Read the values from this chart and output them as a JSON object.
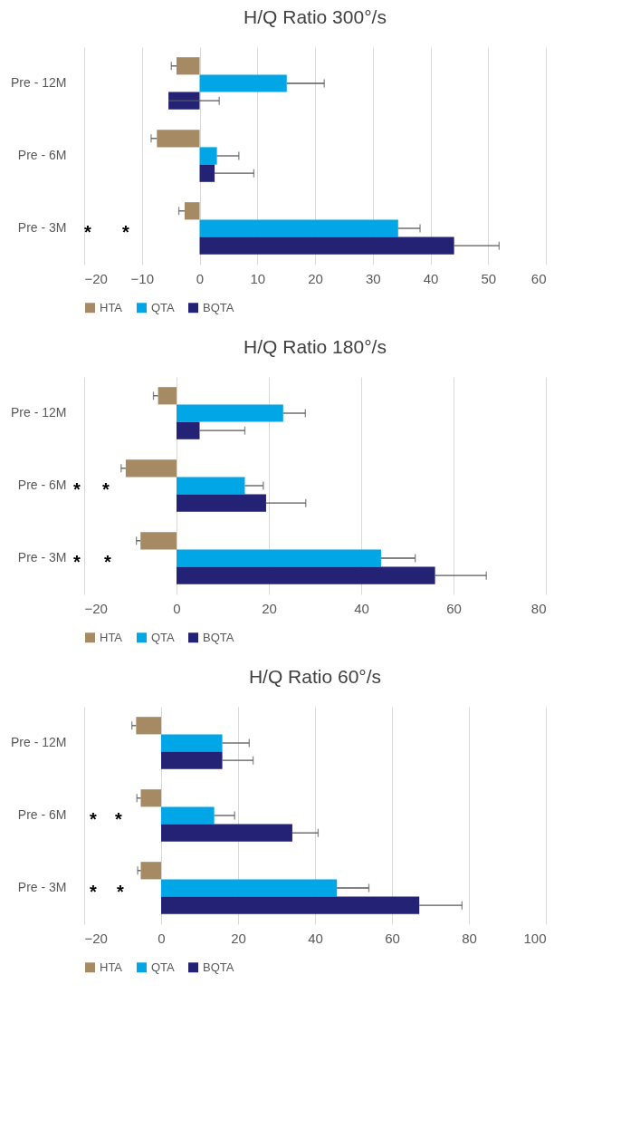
{
  "chart_data": [
    {
      "type": "bar",
      "orientation": "horizontal",
      "title": "H/Q Ratio  300°/s",
      "categories": [
        "Pre - 12M",
        "Pre - 6M",
        "Pre - 3M"
      ],
      "series": [
        {
          "name": "HTA",
          "color": "#a68a64",
          "values": [
            -4.0,
            -7.4,
            -2.6
          ],
          "errors": [
            [
              -4.9,
              -4.0
            ],
            [
              -8.4,
              -7.4
            ],
            [
              -3.6,
              -2.6
            ]
          ]
        },
        {
          "name": "QTA",
          "color": "#00a6e6",
          "values": [
            15.1,
            3.0,
            34.4
          ],
          "errors": [
            [
              15.1,
              21.6
            ],
            [
              3.0,
              6.8
            ],
            [
              34.4,
              38.2
            ]
          ]
        },
        {
          "name": "BQTA",
          "color": "#232274",
          "values": [
            -5.4,
            2.6,
            44.1
          ],
          "errors": [
            [
              -5.4,
              3.4
            ],
            [
              2.6,
              9.4
            ],
            [
              44.1,
              51.9
            ]
          ]
        }
      ],
      "xlim": [
        -20,
        60
      ],
      "xticks": [
        -20,
        -10,
        0,
        10,
        20,
        30,
        40,
        50,
        60
      ],
      "grid": "x",
      "legend": "bottom",
      "annotations": [
        "*",
        "*"
      ]
    },
    {
      "type": "bar",
      "orientation": "horizontal",
      "title": "H/Q Ratio  180°/s",
      "categories": [
        "Pre - 12M",
        "Pre - 6M",
        "Pre - 3M"
      ],
      "series": [
        {
          "name": "HTA",
          "color": "#a68a64",
          "values": [
            -4.0,
            -11.0,
            -7.8
          ],
          "errors": [
            [
              -5.0,
              -4.0
            ],
            [
              -12.0,
              -11.0
            ],
            [
              -8.7,
              -7.8
            ]
          ]
        },
        {
          "name": "QTA",
          "color": "#00a6e6",
          "values": [
            23.1,
            14.8,
            44.3
          ],
          "errors": [
            [
              23.1,
              27.9
            ],
            [
              14.8,
              18.8
            ],
            [
              44.3,
              51.7
            ]
          ]
        },
        {
          "name": "BQTA",
          "color": "#232274",
          "values": [
            5.0,
            19.4,
            56.0
          ],
          "errors": [
            [
              5.0,
              14.8
            ],
            [
              19.4,
              28.0
            ],
            [
              56.0,
              67.1
            ]
          ]
        }
      ],
      "xlim": [
        -20,
        80
      ],
      "xticks": [
        -20,
        0,
        20,
        40,
        60,
        80
      ],
      "grid": "x",
      "legend": "bottom",
      "annotations": [
        "*",
        "*",
        "*",
        "*"
      ]
    },
    {
      "type": "bar",
      "orientation": "horizontal",
      "title": "H/Q Ratio  60°/s",
      "categories": [
        "Pre - 12M",
        "Pre - 6M",
        "Pre - 3M"
      ],
      "series": [
        {
          "name": "HTA",
          "color": "#a68a64",
          "values": [
            -6.5,
            -5.3,
            -5.3
          ],
          "errors": [
            [
              -7.6,
              -6.5
            ],
            [
              -6.3,
              -5.3
            ],
            [
              -6.1,
              -5.3
            ]
          ]
        },
        {
          "name": "QTA",
          "color": "#00a6e6",
          "values": [
            15.9,
            13.8,
            45.7
          ],
          "errors": [
            [
              15.9,
              22.9
            ],
            [
              13.8,
              19.1
            ],
            [
              45.7,
              54.0
            ]
          ]
        },
        {
          "name": "BQTA",
          "color": "#232274",
          "values": [
            15.9,
            34.1,
            67.1
          ],
          "errors": [
            [
              15.9,
              23.9
            ],
            [
              34.1,
              40.8
            ],
            [
              67.1,
              78.2
            ]
          ]
        }
      ],
      "xlim": [
        -20,
        100
      ],
      "xticks": [
        -20,
        0,
        20,
        40,
        60,
        80,
        100
      ],
      "grid": "x",
      "legend": "bottom",
      "annotations": [
        "*",
        "*",
        "*",
        "*"
      ]
    }
  ]
}
